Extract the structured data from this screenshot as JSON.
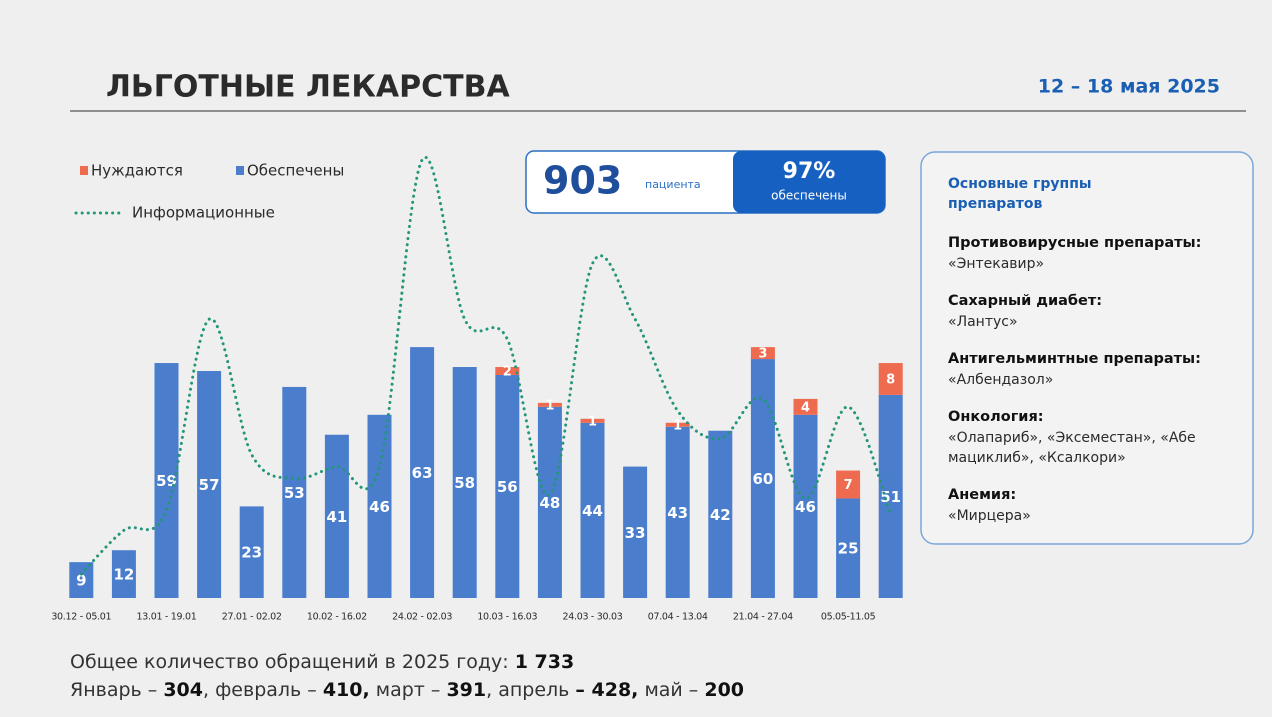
{
  "chart_data": {
    "type": "bar",
    "categories": [
      "30.12 - 05.01",
      null,
      "13.01 - 19.01",
      null,
      "27.01 - 02.02",
      null,
      "10.02 - 16.02",
      null,
      "24.02 - 02.03",
      null,
      "10.03 - 16.03",
      null,
      "24.03 - 30.03",
      null,
      "07.04 - 13.04",
      null,
      "21.04 - 27.04",
      null,
      "05.05-11.05",
      null
    ],
    "series": [
      {
        "name": "Обеспечены",
        "color": "#4a7dcc",
        "values": [
          9,
          12,
          59,
          57,
          23,
          53,
          41,
          46,
          63,
          58,
          56,
          48,
          44,
          33,
          43,
          42,
          60,
          46,
          25,
          51
        ]
      },
      {
        "name": "Нуждаются",
        "color": "#ee6b4f",
        "values": [
          0,
          0,
          0,
          0,
          0,
          0,
          0,
          0,
          0,
          0,
          2,
          1,
          1,
          0,
          1,
          0,
          3,
          4,
          7,
          8
        ]
      },
      {
        "name": "Информационные",
        "color": "#23967a",
        "type": "line",
        "values": [
          6,
          17,
          22,
          70,
          36,
          30,
          33,
          33,
          110,
          70,
          65,
          26,
          84,
          70,
          47,
          40,
          50,
          25,
          48,
          21
        ]
      }
    ],
    "stacked": true,
    "ylim": [
      0,
      113
    ]
  },
  "header": {
    "title": "ЛЬГОТНЫЕ ЛЕКАРСТВА",
    "date": "12 – 18 мая 2025"
  },
  "summary": {
    "count": "903",
    "count_label": "пациента",
    "share": "97%",
    "share_label": "обеспечены"
  },
  "panel": {
    "heading": [
      "Основные группы",
      "препаратов"
    ],
    "items": [
      {
        "title": "Противовирусные препараты:",
        "lines": [
          "«Энтекавир»"
        ]
      },
      {
        "title": "Сахарный диабет:",
        "lines": [
          "«Лантус»"
        ]
      },
      {
        "title": "Антигельминтные препараты:",
        "lines": [
          "«Албендазол»"
        ]
      },
      {
        "title": "Онкология:",
        "lines": [
          "«Олапариб», «Эксеместан», «Абе",
          "мациклиб», «Ксалкори»"
        ]
      },
      {
        "title": "Анемия:",
        "lines": [
          "«Мирцера»"
        ]
      }
    ]
  },
  "footer": [
    [
      {
        "text": "Общее количество обращений  в 2025 году: ",
        "bold": false
      },
      {
        "text": "1 733",
        "bold": true
      }
    ],
    [
      {
        "text": "Январь – ",
        "bold": false
      },
      {
        "text": "304",
        "bold": true
      },
      {
        "text": ", февраль – ",
        "bold": false
      },
      {
        "text": "410,",
        "bold": true
      },
      {
        "text": " март  – ",
        "bold": false
      },
      {
        "text": "391",
        "bold": true
      },
      {
        "text": ", апрель ",
        "bold": false
      },
      {
        "text": "– 428,",
        "bold": true
      },
      {
        "text": " май – ",
        "bold": false
      },
      {
        "text": "200",
        "bold": true
      }
    ]
  ]
}
